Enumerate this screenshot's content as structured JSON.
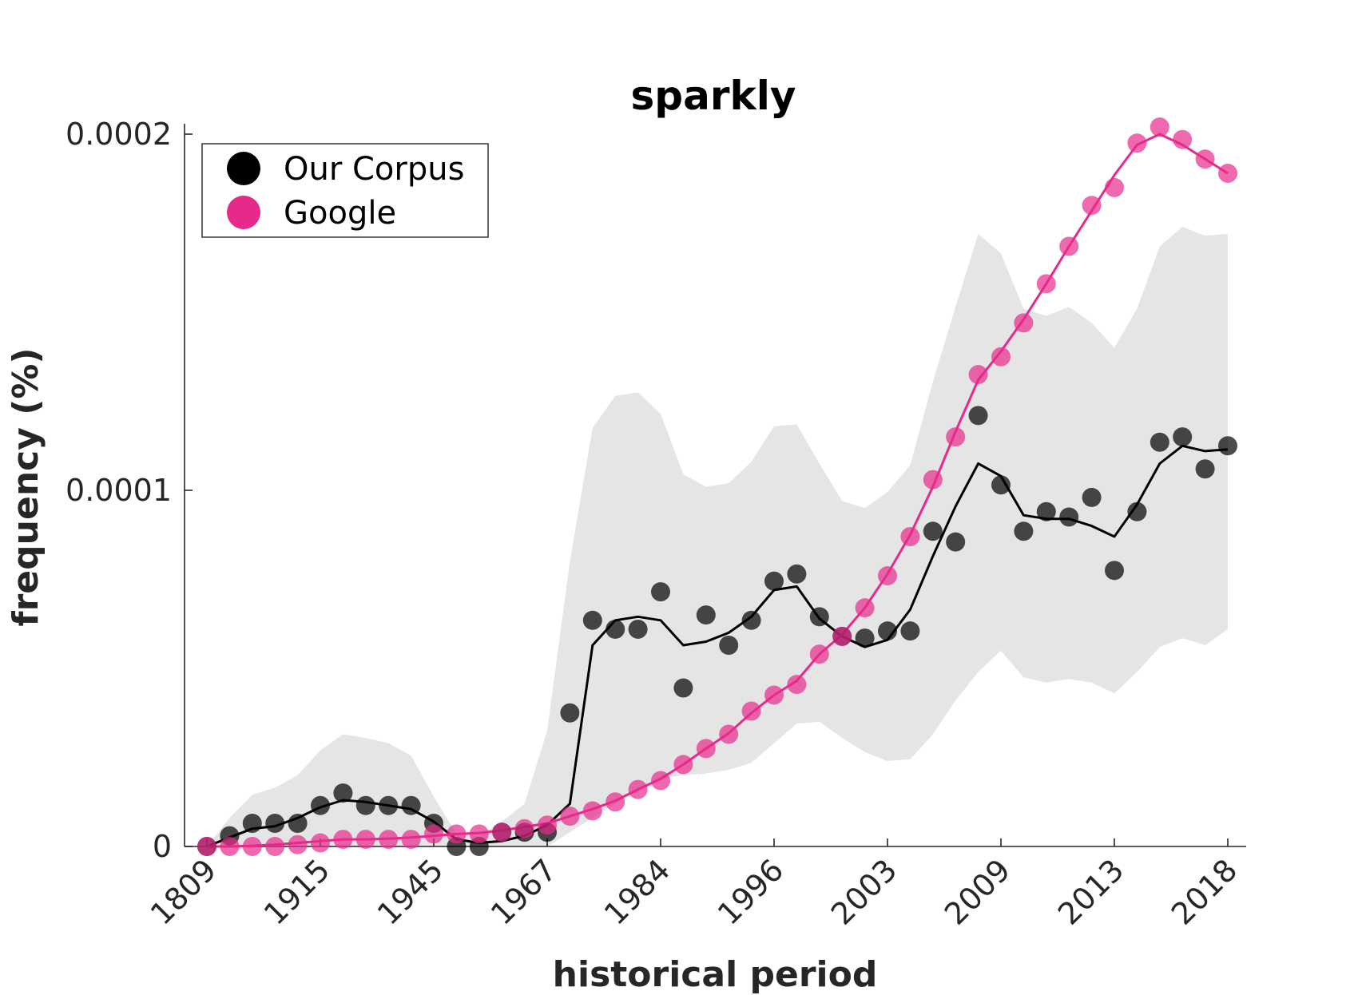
{
  "chart_data": {
    "type": "line",
    "title": "sparkly",
    "xlabel": "historical period",
    "ylabel": "frequency (%)",
    "ylim": [
      0,
      0.0002
    ],
    "y_ticks": [
      {
        "value": 0,
        "label": "0"
      },
      {
        "value": 0.0001,
        "label": "0.0001"
      },
      {
        "value": 0.0002,
        "label": "0.0002"
      }
    ],
    "x_tick_labels": [
      "1809",
      "1915",
      "1945",
      "1967",
      "1984",
      "1996",
      "2003",
      "2009",
      "2013",
      "2018"
    ],
    "x_tick_indices": [
      0,
      5,
      10,
      15,
      20,
      25,
      30,
      35,
      40,
      45
    ],
    "n_points": 46,
    "legend": {
      "placement": "top-left",
      "entries": [
        {
          "label": "Our Corpus",
          "color": "#000000"
        },
        {
          "label": "Google",
          "color": "#e7298a"
        }
      ]
    },
    "series": [
      {
        "name": "Our Corpus",
        "color": "#000000",
        "points": [
          0,
          3e-06,
          6.5e-06,
          6.5e-06,
          6.5e-06,
          1.15e-05,
          1.5e-05,
          1.15e-05,
          1.15e-05,
          1.15e-05,
          6.5e-06,
          0,
          0,
          4e-06,
          4e-06,
          4e-06,
          3.75e-05,
          6.35e-05,
          6.1e-05,
          6.1e-05,
          7.15e-05,
          4.45e-05,
          6.5e-05,
          5.65e-05,
          6.35e-05,
          7.45e-05,
          7.65e-05,
          6.45e-05,
          5.9e-05,
          5.85e-05,
          6.05e-05,
          6.05e-05,
          8.85e-05,
          8.55e-05,
          0.000121,
          0.0001015,
          8.85e-05,
          9.4e-05,
          9.25e-05,
          9.8e-05,
          7.75e-05,
          9.4e-05,
          0.0001135,
          0.000115,
          0.000106,
          0.0001125
        ],
        "smoothed": [
          0,
          2.5e-06,
          5e-06,
          5.7e-06,
          8e-06,
          1.1e-05,
          1.3e-05,
          1.25e-05,
          1.15e-05,
          1.05e-05,
          7e-06,
          2e-06,
          1e-06,
          1.5e-06,
          3e-06,
          6e-06,
          1.2e-05,
          5.65e-05,
          6.35e-05,
          6.45e-05,
          6.35e-05,
          5.65e-05,
          5.75e-05,
          6e-05,
          6.45e-05,
          7.2e-05,
          7.3e-05,
          6.4e-05,
          5.9e-05,
          5.6e-05,
          5.8e-05,
          6.65e-05,
          8.15e-05,
          9.55e-05,
          0.0001075,
          0.000104,
          9.3e-05,
          9.2e-05,
          9.2e-05,
          9e-05,
          8.7e-05,
          9.6e-05,
          0.0001075,
          0.0001125,
          0.000111,
          0.0001115
        ],
        "band_upper": [
          0,
          8e-06,
          1.45e-05,
          1.65e-05,
          2e-05,
          2.7e-05,
          3.15e-05,
          3.05e-05,
          2.9e-05,
          2.55e-05,
          1.4e-05,
          3.5e-06,
          3e-06,
          7e-06,
          1.2e-05,
          3.25e-05,
          8e-05,
          0.0001175,
          0.0001265,
          0.0001275,
          0.0001215,
          0.0001045,
          0.000101,
          0.000102,
          0.000108,
          0.000118,
          0.0001185,
          0.0001075,
          9.7e-05,
          9.5e-05,
          9.95e-05,
          0.000107,
          0.0001305,
          0.0001515,
          0.000172,
          0.0001665,
          0.000151,
          0.000149,
          0.0001515,
          0.000147,
          0.00014,
          0.000151,
          0.0001685,
          0.000174,
          0.0001715,
          0.000172
        ],
        "band_lower": [
          0,
          0,
          0,
          0,
          0,
          0,
          0,
          0,
          0,
          0,
          0,
          0,
          0,
          0,
          0,
          0,
          4e-06,
          8e-06,
          1.2e-05,
          1.6e-05,
          1.9e-05,
          2e-05,
          2.05e-05,
          2.15e-05,
          2.35e-05,
          2.9e-05,
          3.45e-05,
          3.5e-05,
          3.05e-05,
          2.65e-05,
          2.4e-05,
          2.45e-05,
          3.15e-05,
          4.1e-05,
          4.9e-05,
          5.5e-05,
          4.75e-05,
          4.6e-05,
          4.7e-05,
          4.6e-05,
          4.3e-05,
          4.9e-05,
          5.6e-05,
          5.85e-05,
          5.65e-05,
          6.1e-05
        ]
      },
      {
        "name": "Google",
        "color": "#e7298a",
        "points": [
          0,
          0,
          0,
          0,
          5e-07,
          1e-06,
          2e-06,
          2e-06,
          2e-06,
          2e-06,
          3.5e-06,
          3.5e-06,
          3.5e-06,
          4e-06,
          5e-06,
          6e-06,
          8.5e-06,
          1e-05,
          1.25e-05,
          1.6e-05,
          1.85e-05,
          2.3e-05,
          2.75e-05,
          3.15e-05,
          3.8e-05,
          4.25e-05,
          4.55e-05,
          5.4e-05,
          5.9e-05,
          6.7e-05,
          7.6e-05,
          8.7e-05,
          0.000103,
          0.000115,
          0.0001325,
          0.0001375,
          0.000147,
          0.000158,
          0.0001685,
          0.00018,
          0.000185,
          0.0001975,
          0.000202,
          0.0001985,
          0.000193,
          0.000189
        ],
        "smoothed": [
          0,
          0,
          2e-07,
          5e-07,
          1e-06,
          1.5e-06,
          2e-06,
          2e-06,
          2.2e-06,
          2.5e-06,
          3e-06,
          3.5e-06,
          3.8e-06,
          4.5e-06,
          5.5e-06,
          6.5e-06,
          8.5e-06,
          1.05e-05,
          1.28e-05,
          1.6e-05,
          1.9e-05,
          2.3e-05,
          2.75e-05,
          3.18e-05,
          3.75e-05,
          4.25e-05,
          4.65e-05,
          5.4e-05,
          5.95e-05,
          6.7e-05,
          7.65e-05,
          8.75e-05,
          0.000101,
          0.0001165,
          0.000131,
          0.000139,
          0.000148,
          0.000158,
          0.0001685,
          0.0001785,
          0.0001885,
          0.000197,
          0.0002,
          0.000197,
          0.000193,
          0.000189
        ]
      }
    ]
  }
}
